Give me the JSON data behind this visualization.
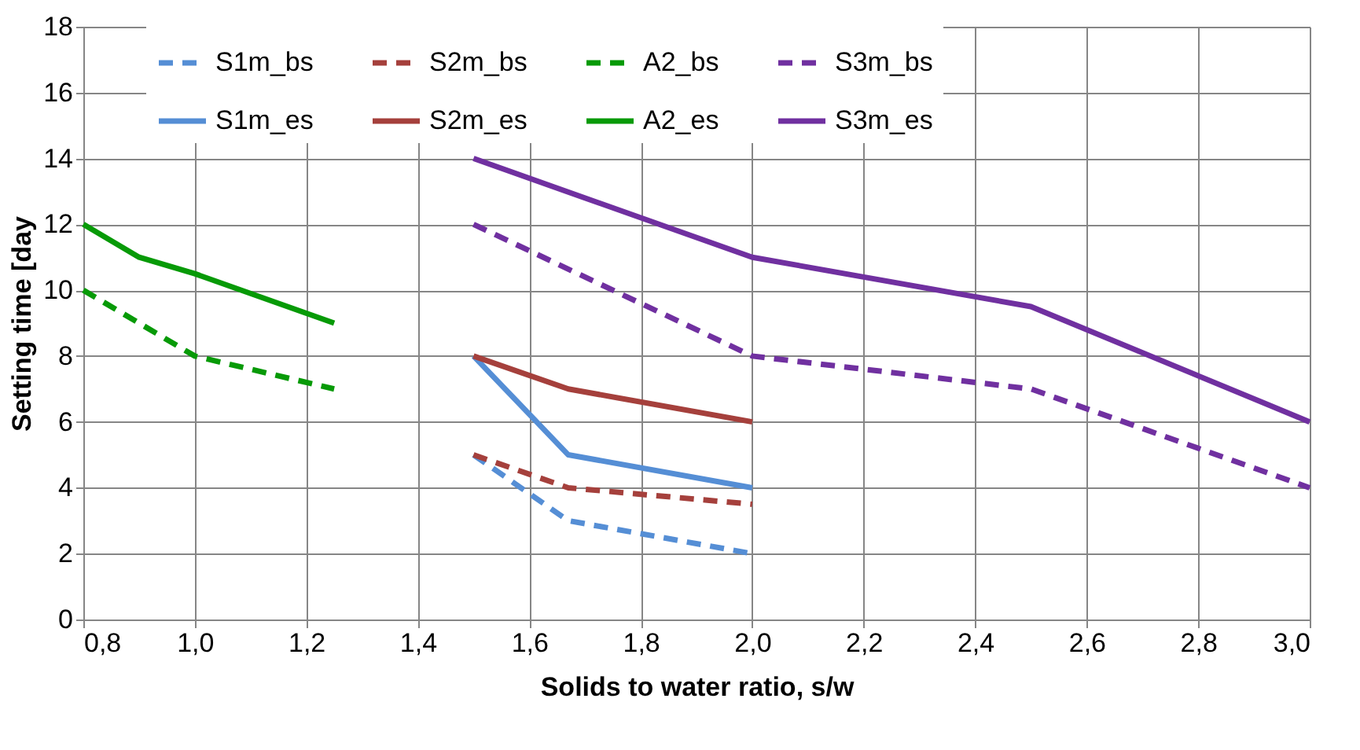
{
  "chart_data": {
    "type": "line",
    "xlabel": "Solids to water ratio, s/w",
    "ylabel": "Setting time [day",
    "xlim": [
      0.8,
      3.0
    ],
    "xticks": [
      {
        "value": 0.8,
        "label": "0,8"
      },
      {
        "value": 1.0,
        "label": "1,0"
      },
      {
        "value": 1.2,
        "label": "1,2"
      },
      {
        "value": 1.4,
        "label": "1,4"
      },
      {
        "value": 1.6,
        "label": "1,6"
      },
      {
        "value": 1.8,
        "label": "1,8"
      },
      {
        "value": 2.0,
        "label": "2,0"
      },
      {
        "value": 2.2,
        "label": "2,2"
      },
      {
        "value": 2.4,
        "label": "2,4"
      },
      {
        "value": 2.6,
        "label": "2,6"
      },
      {
        "value": 2.8,
        "label": "2,8"
      },
      {
        "value": 3.0,
        "label": "3,0"
      }
    ],
    "ylim": [
      0,
      18
    ],
    "yticks": [
      0,
      2,
      4,
      6,
      8,
      10,
      12,
      14,
      16,
      18
    ],
    "grid": true,
    "legend": "top",
    "series": [
      {
        "name": "S1m_bs",
        "color": "#558ed5",
        "line_style": "dashed",
        "x": [
          1.5,
          1.67,
          2.0
        ],
        "values": [
          5,
          3,
          2
        ]
      },
      {
        "name": "S1m_es",
        "color": "#558ed5",
        "line_style": "solid",
        "x": [
          1.5,
          1.67,
          2.0
        ],
        "values": [
          8,
          5,
          4
        ]
      },
      {
        "name": "S2m_bs",
        "color": "#a5403c",
        "line_style": "dashed",
        "x": [
          1.5,
          1.67,
          2.0
        ],
        "values": [
          5,
          4,
          3.5
        ]
      },
      {
        "name": "S2m_es",
        "color": "#a5403c",
        "line_style": "solid",
        "x": [
          1.5,
          1.67,
          2.0
        ],
        "values": [
          8,
          7,
          6
        ]
      },
      {
        "name": "A2_bs",
        "color": "#079a07",
        "line_style": "dashed",
        "x": [
          0.8,
          0.9,
          1.0,
          1.25
        ],
        "values": [
          10,
          9,
          8,
          7
        ]
      },
      {
        "name": "A2_es",
        "color": "#079a07",
        "line_style": "solid",
        "x": [
          0.8,
          0.9,
          1.0,
          1.25
        ],
        "values": [
          12,
          11,
          10.5,
          9
        ]
      },
      {
        "name": "S3m_bs",
        "color": "#7030a0",
        "line_style": "dashed",
        "x": [
          1.5,
          2.0,
          2.5,
          3.0
        ],
        "values": [
          12,
          8,
          7,
          4
        ]
      },
      {
        "name": "S3m_es",
        "color": "#7030a0",
        "line_style": "solid",
        "x": [
          1.5,
          2.0,
          2.5,
          3.0
        ],
        "values": [
          14,
          11,
          9.5,
          6
        ]
      }
    ]
  }
}
